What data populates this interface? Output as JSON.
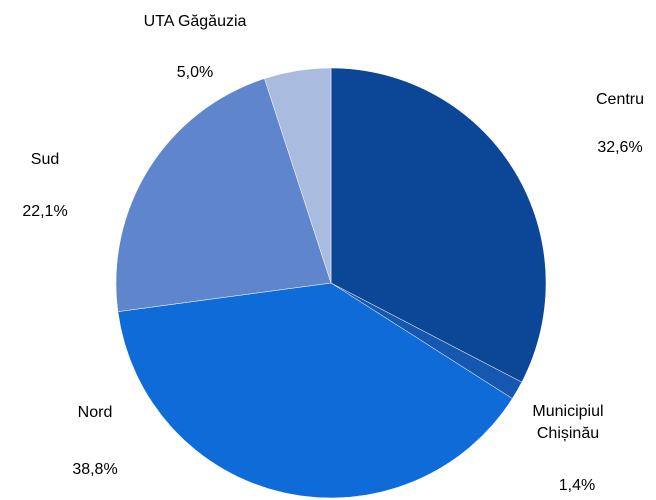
{
  "chart_data": {
    "type": "pie",
    "categories": [
      "Centru",
      "Municipiul Chișinău",
      "Nord",
      "Sud",
      "UTA Găgăuzia"
    ],
    "values": [
      32.6,
      1.4,
      38.8,
      22.1,
      5.0
    ],
    "value_labels": [
      "32,6%",
      "1,4%",
      "38,8%",
      "22,1%",
      "5,0%"
    ],
    "colors": [
      "#0c4696",
      "#1658b0",
      "#0f6bd8",
      "#5f86cc",
      "#a9bbdf"
    ]
  }
}
